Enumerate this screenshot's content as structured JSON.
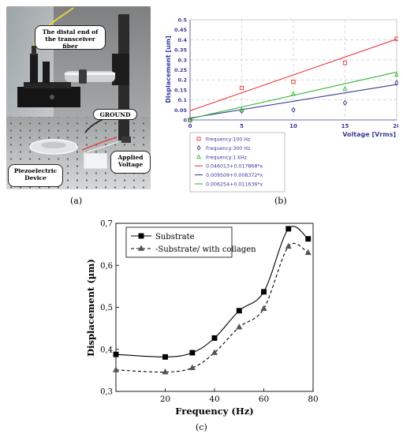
{
  "panel_a": {
    "labels": {
      "fiber": "The distal end of the transceiver fiber",
      "ground": "GROUND",
      "voltage": "Applied Voltage",
      "device": "Piezoelectric Device"
    },
    "letter": "(a)"
  },
  "panel_b": {
    "letter": "(b)",
    "legend": [
      {
        "label": "Frequency:100 Hz",
        "marker": "square",
        "color": "#e8383d"
      },
      {
        "label": "Frequency:300 Hz",
        "marker": "diamond",
        "color": "#3b3c95"
      },
      {
        "label": "Frequency:1 kHz",
        "marker": "triangle",
        "color": "#35b935"
      },
      {
        "label": "0.046013+0.017868*x",
        "marker": "line",
        "color": "#e8383d"
      },
      {
        "label": "0.009509+0.008372*x",
        "marker": "line",
        "color": "#3b3c95"
      },
      {
        "label": "0.006254+0.011636*x",
        "marker": "line",
        "color": "#35b935"
      }
    ]
  },
  "panel_c": {
    "letter": "(c)",
    "legend": [
      {
        "label": "Substrate",
        "style": "solid",
        "marker": "square"
      },
      {
        "label": "-Substrate/ with collagen",
        "style": "dashed",
        "marker": "triangle"
      }
    ]
  },
  "chart_data": [
    {
      "type": "scatter",
      "xlabel": "Voltage [Vrms]",
      "ylabel": "Displacement [um]",
      "xlim": [
        0,
        20
      ],
      "ylim": [
        0,
        0.5
      ],
      "xticks": [
        "0",
        "5",
        "10",
        "15",
        "20"
      ],
      "yticks": [
        "0",
        "0.05",
        "0.1",
        "0.15",
        "0.2",
        "0.25",
        "0.3",
        "0.35",
        "0.4",
        "0.45",
        "0.5"
      ],
      "grid": true,
      "legend_position": "below",
      "series": [
        {
          "name": "Frequency:100 Hz",
          "color": "#e8383d",
          "marker": "square",
          "x": [
            0,
            5,
            10,
            15,
            20
          ],
          "y": [
            0.0,
            0.16,
            0.19,
            0.285,
            0.405
          ]
        },
        {
          "name": "Frequency:300 Hz",
          "color": "#3b3c95",
          "marker": "diamond",
          "x": [
            0,
            5,
            10,
            15,
            20
          ],
          "y": [
            0.0,
            0.045,
            0.05,
            0.085,
            0.185
          ]
        },
        {
          "name": "Frequency:1 kHz",
          "color": "#35b935",
          "marker": "triangle",
          "x": [
            0,
            5,
            10,
            15,
            20
          ],
          "y": [
            0.0,
            0.05,
            0.13,
            0.155,
            0.225
          ]
        }
      ],
      "fits": [
        {
          "name": "0.046013+0.017868*x",
          "color": "#e8383d",
          "intercept": 0.046013,
          "slope": 0.017868
        },
        {
          "name": "0.009509+0.008372*x",
          "color": "#3b3c95",
          "intercept": 0.009509,
          "slope": 0.008372
        },
        {
          "name": "0.006254+0.011636*x",
          "color": "#35b935",
          "intercept": 0.006254,
          "slope": 0.011636
        }
      ]
    },
    {
      "type": "line",
      "xlabel": "Frequency (Hz)",
      "ylabel": "Displacement (µm)",
      "xlim": [
        0,
        80
      ],
      "ylim": [
        0.3,
        0.7
      ],
      "xticks": [
        "20",
        "40",
        "60",
        "80"
      ],
      "yticks": [
        "0,3",
        "0,4",
        "0,5",
        "0,6",
        "0,7"
      ],
      "grid": false,
      "legend_position": "top-left",
      "series": [
        {
          "name": "Substrate",
          "style": "solid",
          "marker": "square",
          "x": [
            0,
            20,
            31,
            40,
            50,
            60,
            70,
            78
          ],
          "y": [
            0.388,
            0.382,
            0.392,
            0.427,
            0.492,
            0.537,
            0.687,
            0.663
          ]
        },
        {
          "name": "-Substrate/ with collagen",
          "style": "dashed",
          "marker": "triangle",
          "x": [
            0,
            20,
            31,
            40,
            50,
            60,
            70,
            78
          ],
          "y": [
            0.351,
            0.346,
            0.356,
            0.392,
            0.453,
            0.497,
            0.645,
            0.63
          ]
        }
      ]
    }
  ]
}
